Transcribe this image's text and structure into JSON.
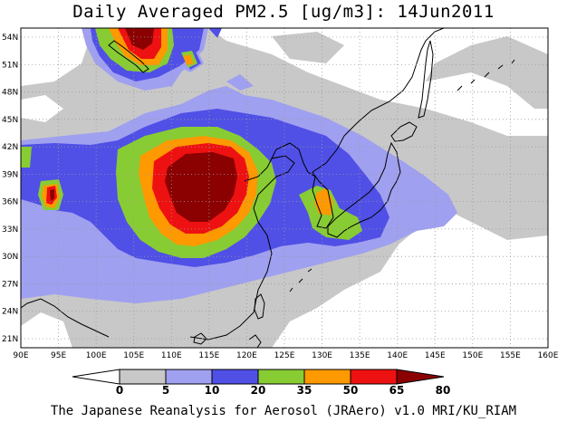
{
  "title": "Daily Averaged PM2.5 [ug/m3]: 14Jun2011",
  "footer": "The Japanese Reanalysis for Aerosol (JRAero) v1.0 MRI/KU_RIAM",
  "map": {
    "lon_labels": [
      "90E",
      "95E",
      "100E",
      "105E",
      "110E",
      "115E",
      "120E",
      "125E",
      "130E",
      "135E",
      "140E",
      "145E",
      "150E",
      "155E",
      "160E"
    ],
    "lat_labels": [
      "54N",
      "51N",
      "48N",
      "45N",
      "42N",
      "39N",
      "36N",
      "33N",
      "30N",
      "27N",
      "24N",
      "21N"
    ],
    "grid_lines": "dotted"
  },
  "legend": {
    "levels": [
      "0",
      "5",
      "10",
      "20",
      "35",
      "50",
      "65",
      "80"
    ],
    "colors": [
      "#ffffff",
      "#c8c8c8",
      "#a0a0f0",
      "#5050e6",
      "#88cc33",
      "#ff9900",
      "#ee1111",
      "#8b0000"
    ],
    "units": "ug/m3"
  }
}
